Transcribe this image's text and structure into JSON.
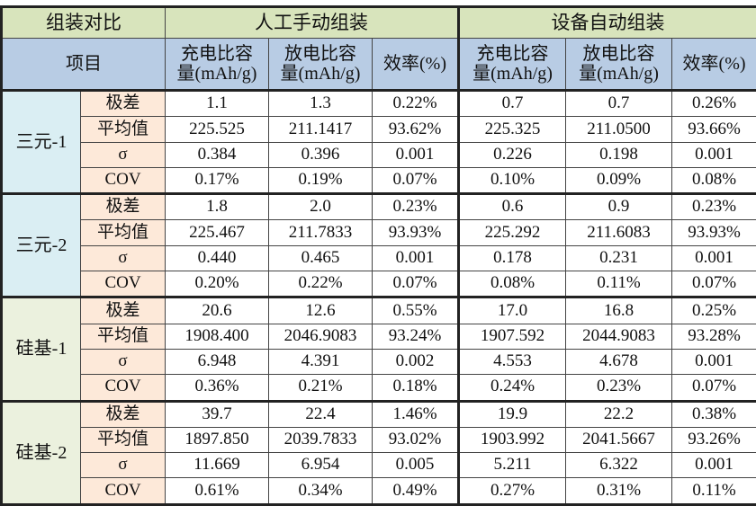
{
  "header": {
    "compare": "组装对比",
    "manual": "人工手动组装",
    "auto": "设备自动组装",
    "item": "项目",
    "cols": [
      "充电比容量(mAh/g)",
      "放电比容量(mAh/g)",
      "效率(%)",
      "充电比容量(mAh/g)",
      "放电比容量(mAh/g)",
      "效率(%)"
    ]
  },
  "metrics": [
    "极差",
    "平均值",
    "σ",
    "COV"
  ],
  "groups": [
    {
      "name": "三元-1",
      "rows": [
        [
          "1.1",
          "1.3",
          "0.22%",
          "0.7",
          "0.7",
          "0.26%"
        ],
        [
          "225.525",
          "211.1417",
          "93.62%",
          "225.325",
          "211.0500",
          "93.66%"
        ],
        [
          "0.384",
          "0.396",
          "0.001",
          "0.226",
          "0.198",
          "0.001"
        ],
        [
          "0.17%",
          "0.19%",
          "0.07%",
          "0.10%",
          "0.09%",
          "0.08%"
        ]
      ]
    },
    {
      "name": "三元-2",
      "rows": [
        [
          "1.8",
          "2.0",
          "0.23%",
          "0.6",
          "0.9",
          "0.23%"
        ],
        [
          "225.467",
          "211.7833",
          "93.93%",
          "225.292",
          "211.6083",
          "93.93%"
        ],
        [
          "0.440",
          "0.465",
          "0.001",
          "0.178",
          "0.231",
          "0.001"
        ],
        [
          "0.20%",
          "0.22%",
          "0.07%",
          "0.08%",
          "0.11%",
          "0.07%"
        ]
      ]
    },
    {
      "name": "硅基-1",
      "rows": [
        [
          "20.6",
          "12.6",
          "0.55%",
          "17.0",
          "16.8",
          "0.25%"
        ],
        [
          "1908.400",
          "2046.9083",
          "93.24%",
          "1907.592",
          "2044.9083",
          "93.28%"
        ],
        [
          "6.948",
          "4.391",
          "0.002",
          "4.553",
          "4.678",
          "0.001"
        ],
        [
          "0.36%",
          "0.21%",
          "0.18%",
          "0.24%",
          "0.23%",
          "0.07%"
        ]
      ]
    },
    {
      "name": "硅基-2",
      "rows": [
        [
          "39.7",
          "22.4",
          "1.46%",
          "19.9",
          "22.2",
          "0.38%"
        ],
        [
          "1897.850",
          "2039.7833",
          "93.02%",
          "1903.992",
          "2041.5667",
          "93.26%"
        ],
        [
          "11.669",
          "6.954",
          "0.005",
          "5.211",
          "6.322",
          "0.001"
        ],
        [
          "0.61%",
          "0.34%",
          "0.49%",
          "0.27%",
          "0.31%",
          "0.11%"
        ]
      ]
    }
  ],
  "colors": {
    "header_green": "#d8e4bc",
    "header_blue": "#b8cce4",
    "ternary_bg": "#daeef3",
    "silicon_bg": "#ebf1de",
    "metric_bg": "#fde9d9"
  }
}
